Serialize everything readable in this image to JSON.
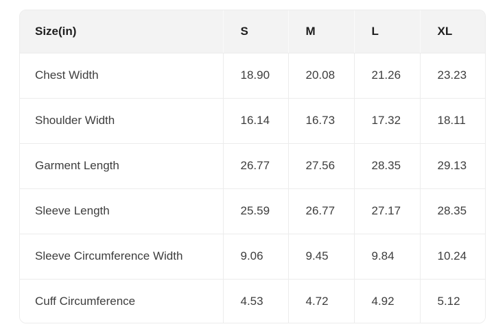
{
  "table": {
    "header": {
      "label": "Size(in)",
      "sizes": [
        "S",
        "M",
        "L",
        "XL"
      ]
    },
    "rows": [
      {
        "label": "Chest Width",
        "values": [
          "18.90",
          "20.08",
          "21.26",
          "23.23"
        ]
      },
      {
        "label": "Shoulder Width",
        "values": [
          "16.14",
          "16.73",
          "17.32",
          "18.11"
        ]
      },
      {
        "label": "Garment Length",
        "values": [
          "26.77",
          "27.56",
          "28.35",
          "29.13"
        ]
      },
      {
        "label": "Sleeve Length",
        "values": [
          "25.59",
          "26.77",
          "27.17",
          "28.35"
        ]
      },
      {
        "label": "Sleeve Circumference Width",
        "values": [
          "9.06",
          "9.45",
          "9.84",
          "10.24"
        ]
      },
      {
        "label": "Cuff Circumference",
        "values": [
          "4.53",
          "4.72",
          "4.92",
          "5.12"
        ]
      }
    ]
  },
  "colors": {
    "header_bg": "#f3f3f3",
    "grid_line": "#ececec",
    "header_divider": "#fafafa",
    "header_text": "#1d1d1d",
    "cell_text": "#3d3d3d",
    "card_bg": "#ffffff"
  },
  "chart_data": {
    "type": "table",
    "title": "Size(in)",
    "columns": [
      "Size(in)",
      "S",
      "M",
      "L",
      "XL"
    ],
    "rows": [
      [
        "Chest Width",
        18.9,
        20.08,
        21.26,
        23.23
      ],
      [
        "Shoulder Width",
        16.14,
        16.73,
        17.32,
        18.11
      ],
      [
        "Garment Length",
        26.77,
        27.56,
        28.35,
        29.13
      ],
      [
        "Sleeve Length",
        25.59,
        26.77,
        27.17,
        28.35
      ],
      [
        "Sleeve Circumference Width",
        9.06,
        9.45,
        9.84,
        10.24
      ],
      [
        "Cuff Circumference",
        4.53,
        4.72,
        4.92,
        5.12
      ]
    ],
    "layout_hints": {
      "header_row_shaded": true,
      "grid": true,
      "rounded_corners": true,
      "value_alignment": "left"
    }
  }
}
